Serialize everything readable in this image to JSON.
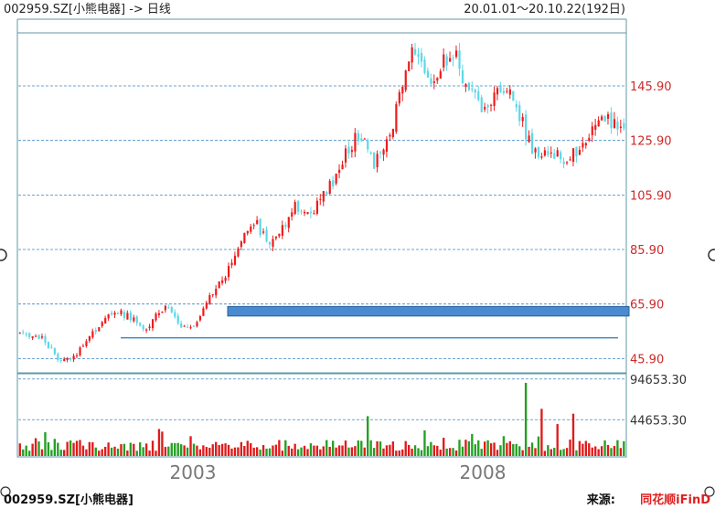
{
  "header": {
    "title": "002959.SZ[小熊电器] -> 日线",
    "range": "20.01.01～20.10.22(192日)"
  },
  "footer": {
    "stock": "002959.SZ[小熊电器]",
    "source_label": "来源:",
    "brand": "同花顺iFinD"
  },
  "colors": {
    "up": "#ee1c1c",
    "down": "#5bd8e8",
    "vol_up": "#e01b1b",
    "vol_down": "#23a023",
    "axis_label": "#cc2a2a",
    "grid": "#3a86c8",
    "frame": "#5f9aa6",
    "bar_highlight": "#4a8ad0"
  },
  "chart_data": {
    "type": "candlestick",
    "x_tick_labels": [
      "2003",
      "2008"
    ],
    "price_axis": {
      "ticks": [
        45.9,
        65.9,
        85.9,
        105.9,
        125.9,
        145.9
      ],
      "ylim": [
        41,
        165
      ]
    },
    "volume_axis": {
      "ticks": [
        44653.3,
        94653.3
      ],
      "ylim": [
        0,
        100000
      ]
    },
    "support_line": 53.5,
    "highlight_band": [
      61.5,
      65.0
    ],
    "close_path": [
      55.0,
      54.0,
      53.5,
      53.0,
      49.0,
      45.0,
      46.0,
      48.0,
      50.0,
      55.0,
      59.0,
      62.0,
      63.5,
      62.0,
      61.0,
      58.0,
      57.0,
      62.0,
      64.0,
      62.0,
      58.0,
      57.0,
      60.0,
      65.0,
      70.0,
      74.0,
      79.0,
      86.0,
      92.0,
      97.0,
      92.0,
      88.0,
      91.0,
      96.0,
      103.0,
      101.0,
      99.0,
      102.0,
      108.0,
      112.0,
      118.0,
      124.0,
      128.0,
      123.0,
      118.0,
      122.0,
      126.0,
      140.0,
      150.0,
      160.0,
      156.0,
      148.0,
      152.0,
      156.0,
      158.0,
      150.0,
      144.0,
      139.0,
      136.0,
      142.0,
      145.0,
      142.0,
      136.0,
      126.0,
      122.0,
      121.0,
      122.0,
      121.0,
      119.0,
      121.0,
      125.0,
      129.0,
      132.0,
      134.0,
      131.0,
      130.0
    ],
    "volume_peaks": [
      {
        "day": 45,
        "value": 30000
      },
      {
        "day": 110,
        "value": 49000
      },
      {
        "day": 160,
        "value": 90000
      },
      {
        "day": 165,
        "value": 58000
      },
      {
        "day": 175,
        "value": 52000
      }
    ]
  }
}
